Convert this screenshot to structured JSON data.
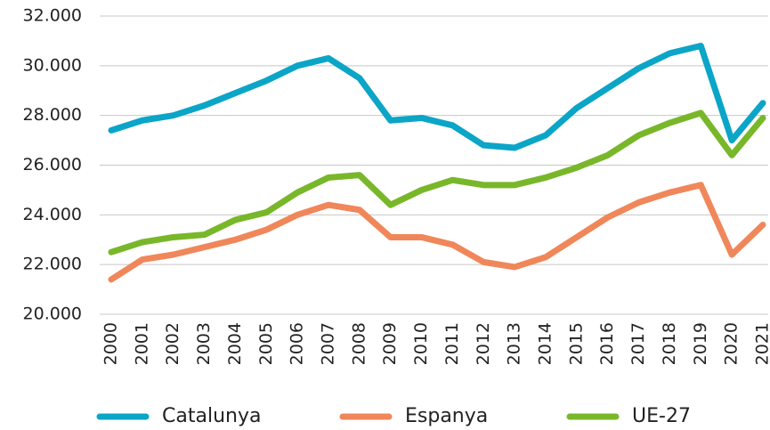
{
  "chart_data": {
    "type": "line",
    "categories": [
      "2000",
      "2001",
      "2002",
      "2003",
      "2004",
      "2005",
      "2006",
      "2007",
      "2008",
      "2009",
      "2010",
      "2011",
      "2012",
      "2013",
      "2014",
      "2015",
      "2016",
      "2017",
      "2018",
      "2019",
      "2020",
      "2021"
    ],
    "series": [
      {
        "name": "Catalunya",
        "color": "#0ba5c7",
        "values": [
          27400,
          27800,
          28000,
          28400,
          28900,
          29400,
          30000,
          30300,
          29500,
          27800,
          27900,
          27600,
          26800,
          26700,
          27200,
          28300,
          29100,
          29900,
          30500,
          30800,
          27000,
          28500
        ]
      },
      {
        "name": "Espanya",
        "color": "#f0875a",
        "values": [
          21400,
          22200,
          22400,
          22700,
          23000,
          23400,
          24000,
          24400,
          24200,
          23100,
          23100,
          22800,
          22100,
          21900,
          22300,
          23100,
          23900,
          24500,
          24900,
          25200,
          22400,
          23600
        ]
      },
      {
        "name": "UE-27",
        "color": "#79b72a",
        "values": [
          22500,
          22900,
          23100,
          23200,
          23800,
          24100,
          24900,
          25500,
          25600,
          24400,
          25000,
          25400,
          25200,
          25200,
          25500,
          25900,
          26400,
          27200,
          27700,
          28100,
          26400,
          27900
        ]
      }
    ],
    "ylim": [
      20000,
      32000
    ],
    "yticks": [
      {
        "value": 20000,
        "label": "20.000"
      },
      {
        "value": 22000,
        "label": "22.000"
      },
      {
        "value": 24000,
        "label": "24.000"
      },
      {
        "value": 26000,
        "label": "26.000"
      },
      {
        "value": 28000,
        "label": "28.000"
      },
      {
        "value": 30000,
        "label": "30.000"
      },
      {
        "value": 32000,
        "label": "32.000"
      }
    ],
    "grid": true,
    "legend": "bottom"
  }
}
